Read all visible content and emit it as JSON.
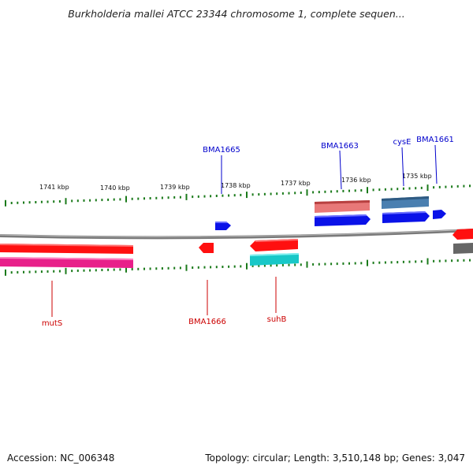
{
  "title": "Burkholderia mallei ATCC 23344 chromosome 1, complete sequen...",
  "footer": {
    "accession": "Accession: NC_006348",
    "topology": "Topology: circular; Length: 3,510,148 bp; Genes: 3,047"
  },
  "scale_labels": [
    "1741 kbp",
    "1740 kbp",
    "1739 kbp",
    "1738 kbp",
    "1737 kbp",
    "1736 kbp",
    "1735 kbp"
  ],
  "forward_gene_labels": [
    "BMA1665",
    "BMA1663",
    "cysE",
    "BMA1661"
  ],
  "reverse_gene_labels": [
    "mutS",
    "BMA1666",
    "suhB"
  ],
  "colors": {
    "forward_label": "#0000cc",
    "reverse_label": "#cc0000",
    "tick": "#1a7a1a",
    "backbone": "#888888"
  }
}
